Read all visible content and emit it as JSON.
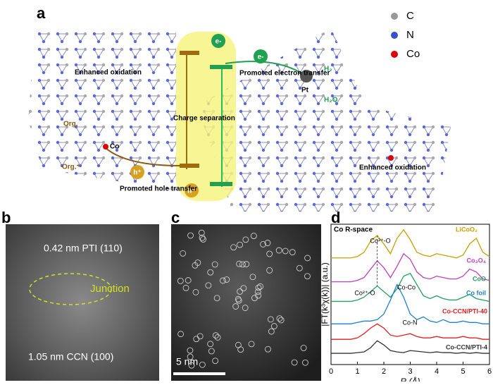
{
  "panel_a": {
    "label": "a",
    "legend": [
      "C",
      "N",
      "Co"
    ],
    "texts": {
      "enh_ox_left": "Enhanced  oxidation",
      "electron_transfer": "Promoted electron transfer",
      "e1": "e-",
      "e2": "e-",
      "charge_sep": "Charge separation",
      "pt": "Pt",
      "h2": "H₂",
      "h2o": "H₂O",
      "org": "Org.",
      "org_plus": "Org.⁺",
      "co": "Co",
      "h1": "h⁺",
      "h2plus": "h⁺",
      "hole_transfer": "Promoted hole transfer",
      "enh_ox_right": "Enhanced oxidation"
    }
  },
  "panel_b": {
    "label": "b",
    "texts": {
      "pti": "0.42 nm PTI (110)",
      "junction": "Junction",
      "ccn": "1.05 nm CCN (100)"
    }
  },
  "panel_c": {
    "label": "c",
    "scale": "5 nm"
  },
  "chart_data": {
    "type": "line",
    "label": "d",
    "subtitle": "Co  R-space",
    "x_label": "R (Å)",
    "y_label": "|FT(k³χ(k))| (a.u.)",
    "xlim": [
      0,
      6
    ],
    "xticks": [
      0,
      1,
      2,
      3,
      4,
      5,
      6
    ],
    "ylim": [
      0,
      10
    ],
    "x": [
      0,
      0.25,
      0.5,
      0.75,
      1,
      1.25,
      1.5,
      1.75,
      2,
      2.25,
      2.5,
      2.75,
      3,
      3.25,
      3.5,
      3.75,
      4,
      4.25,
      4.5,
      4.75,
      5,
      5.25,
      5.5,
      5.75,
      6
    ],
    "series": [
      {
        "name": "LiCoO₂",
        "color": "#c8a000",
        "values": [
          7.6,
          7.6,
          7.6,
          7.6,
          7.7,
          8.0,
          8.8,
          9.2,
          8.6,
          7.9,
          9.0,
          9.6,
          8.9,
          8.0,
          7.8,
          7.7,
          7.9,
          7.8,
          7.7,
          7.6,
          7.8,
          8.6,
          9.0,
          8.0,
          7.7
        ]
      },
      {
        "name": "Co₃O₄",
        "color": "#c040c0",
        "values": [
          5.9,
          5.9,
          5.9,
          5.9,
          6.0,
          6.2,
          6.8,
          7.4,
          6.9,
          6.2,
          7.0,
          7.9,
          7.5,
          6.6,
          6.2,
          6.1,
          6.3,
          6.2,
          6.1,
          6.1,
          6.3,
          6.8,
          6.6,
          6.1,
          6.0
        ]
      },
      {
        "name": "CoO",
        "color": "#20a060",
        "values": [
          4.5,
          4.5,
          4.5,
          4.5,
          4.6,
          4.8,
          5.2,
          5.6,
          5.2,
          4.8,
          5.4,
          6.3,
          6.5,
          5.7,
          4.9,
          4.7,
          4.9,
          4.7,
          4.6,
          4.6,
          4.8,
          5.0,
          4.7,
          4.6,
          4.5
        ]
      },
      {
        "name": "Co foil",
        "color": "#2080d0",
        "values": [
          2.9,
          2.9,
          2.9,
          2.9,
          3.0,
          3.1,
          3.1,
          3.2,
          3.6,
          4.6,
          5.7,
          4.8,
          3.6,
          3.2,
          3.4,
          3.1,
          3.0,
          3.2,
          3.0,
          3.0,
          3.1,
          3.0,
          3.0,
          2.9,
          2.9
        ]
      },
      {
        "name": "Co-CCN/PTI-40",
        "color": "#e02020",
        "values": [
          1.8,
          1.8,
          1.8,
          1.8,
          1.9,
          2.2,
          2.6,
          2.9,
          2.6,
          2.1,
          2.0,
          2.1,
          2.2,
          2.0,
          1.9,
          1.9,
          2.0,
          1.9,
          1.9,
          1.9,
          2.0,
          1.9,
          1.9,
          1.8,
          1.8
        ]
      },
      {
        "name": "Co-CCN/PTI-4",
        "color": "#333333",
        "values": [
          0.8,
          0.8,
          0.8,
          0.8,
          0.85,
          0.9,
          1.2,
          1.7,
          1.4,
          1.0,
          0.9,
          0.85,
          1.0,
          0.95,
          0.9,
          0.85,
          0.9,
          0.85,
          0.85,
          0.8,
          0.85,
          0.8,
          0.85,
          0.8,
          0.8
        ]
      }
    ],
    "annotations": [
      "Co³⁺-O",
      "Co²⁺-O",
      "Co-Co",
      "Co-N"
    ]
  }
}
